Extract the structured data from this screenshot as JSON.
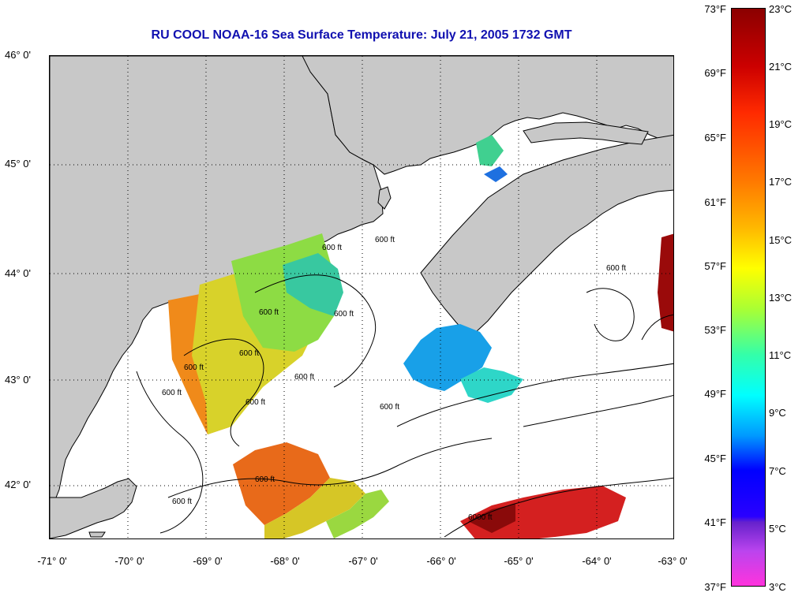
{
  "title": "RU COOL  NOAA-16  Sea Surface Temperature:  July 21, 2005 1732 GMT",
  "map": {
    "lat_labels": [
      "46° 0'",
      "45° 0'",
      "44° 0'",
      "43° 0'",
      "42° 0'"
    ],
    "lon_labels": [
      "-71° 0'",
      "-70° 0'",
      "-69° 0'",
      "-68° 0'",
      "-67° 0'",
      "-66° 0'",
      "-65° 0'",
      "-64° 0'",
      "-63° 0'"
    ],
    "contour_labels": [
      "600 ft",
      "600 ft",
      "600 ft",
      "600 ft",
      "600 ft",
      "600 ft",
      "600 ft",
      "600 ft",
      "600 ft",
      "600 ft",
      "600 ft",
      "600 ft",
      "600 ft",
      "6000 ft"
    ],
    "colors": {
      "land": "#c8c8c8",
      "water": "#ffffff",
      "coast": "#000000",
      "grid": "#000000"
    }
  },
  "colorbar": {
    "fahrenheit": [
      "73°F",
      "69°F",
      "65°F",
      "61°F",
      "57°F",
      "53°F",
      "49°F",
      "45°F",
      "41°F",
      "37°F"
    ],
    "celsius": [
      "23°C",
      "21°C",
      "19°C",
      "17°C",
      "15°C",
      "13°C",
      "11°C",
      "9°C",
      "7°C",
      "5°C",
      "3°C"
    ]
  }
}
